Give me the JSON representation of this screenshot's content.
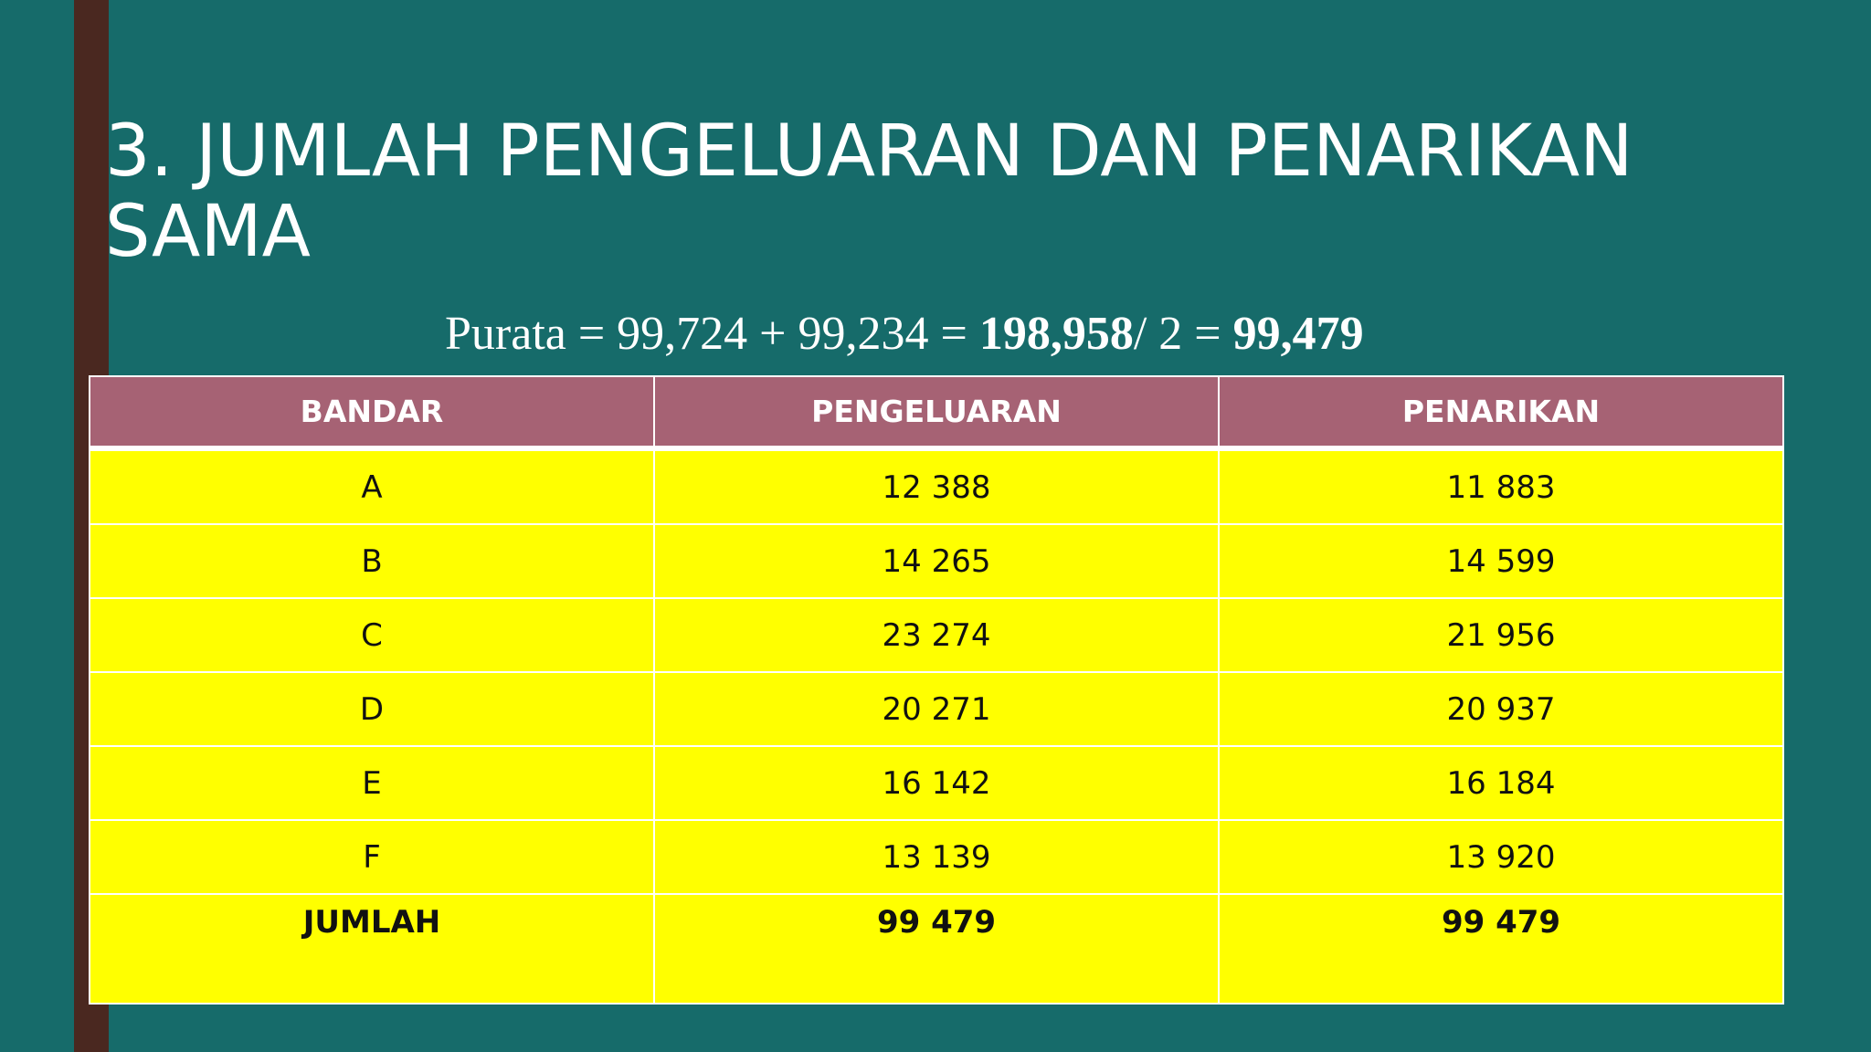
{
  "slide": {
    "title": "3. JUMLAH PENGELUARAN DAN PENARIKAN SAMA",
    "formula": {
      "lead": "Purata = 99,724 + 99,234 = ",
      "sum": "198,958",
      "divider": "/ 2 = ",
      "result": "99,479"
    }
  },
  "table": {
    "headers": [
      "BANDAR",
      "PENGELUARAN",
      "PENARIKAN"
    ],
    "rows": [
      [
        "A",
        "12 388",
        "11 883"
      ],
      [
        "B",
        "14 265",
        "14 599"
      ],
      [
        "C",
        "23 274",
        "21 956"
      ],
      [
        "D",
        "20 271",
        "20 937"
      ],
      [
        "E",
        "16 142",
        "16 184"
      ],
      [
        "F",
        "13 139",
        "13 920"
      ]
    ],
    "total": [
      "JUMLAH",
      "99 479",
      "99 479"
    ]
  },
  "colors": {
    "background": "#166b6a",
    "accent_bar": "#4a2820",
    "header_fill": "#a66274",
    "cell_fill": "#ffff00"
  }
}
